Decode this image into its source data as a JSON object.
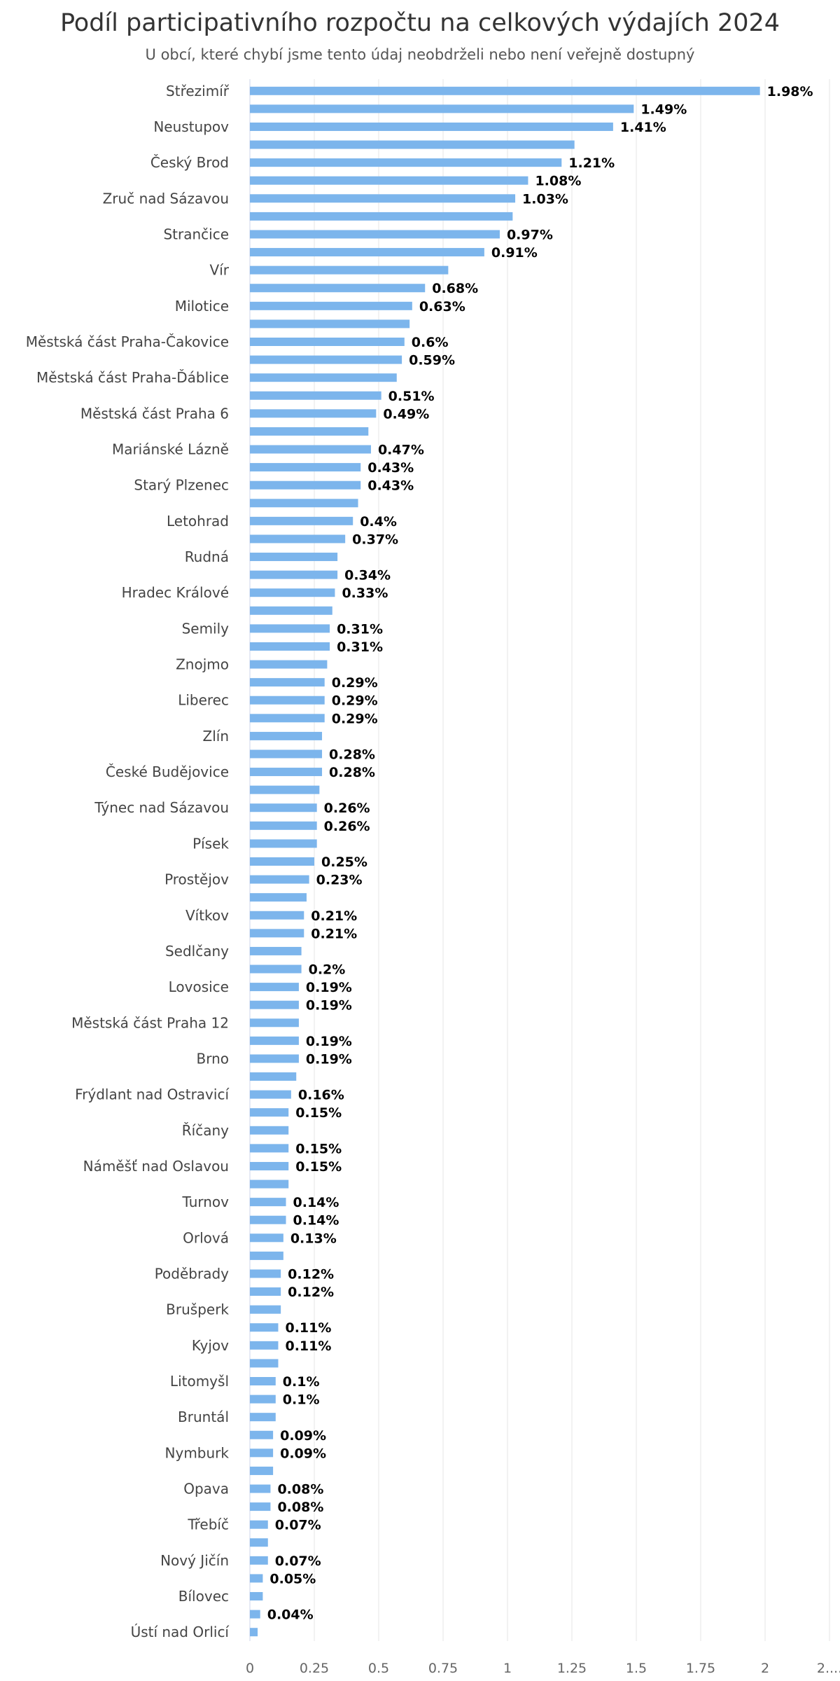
{
  "chart_data": {
    "type": "bar",
    "orientation": "horizontal",
    "title": "Podíl participativního rozpočtu na celkových výdajích 2024",
    "subtitle": "U obcí, které chybí jsme tento údaj neobdrželi nebo není veřejně dostupný",
    "xlabel": "",
    "ylabel": "",
    "xlim": [
      0,
      2.2
    ],
    "grid": true,
    "bar_color": "#7cb5ec",
    "x_ticks": [
      "0",
      "0.25",
      "0.5",
      "0.75",
      "1",
      "1.25",
      "1.5",
      "1.75",
      "2",
      "2...."
    ],
    "categories": [
      "Střezimíř",
      "",
      "Neustupov",
      "",
      "Český Brod",
      "",
      "Zruč nad Sázavou",
      "",
      "Strančice",
      "",
      "Vír",
      "",
      "Milotice",
      "",
      "Městská část Praha-Čakovice",
      "",
      "Městská část Praha-Ďáblice",
      "",
      "Městská část Praha 6",
      "",
      "Mariánské Lázně",
      "",
      "Starý Plzenec",
      "",
      "Letohrad",
      "",
      "Rudná",
      "",
      "Hradec Králové",
      "",
      "Semily",
      "",
      "Znojmo",
      "",
      "Liberec",
      "",
      "Zlín",
      "",
      "České Budějovice",
      "",
      "Týnec nad Sázavou",
      "",
      "Písek",
      "",
      "Prostějov",
      "",
      "Vítkov",
      "",
      "Sedlčany",
      "",
      "Lovosice",
      "",
      "Městská část Praha 12",
      "",
      "Brno",
      "",
      "Frýdlant nad Ostravicí",
      "",
      "Říčany",
      "",
      "Náměšť nad Oslavou",
      "",
      "Turnov",
      "",
      "Orlová",
      "",
      "Poděbrady",
      "",
      "Brušperk",
      "",
      "Kyjov",
      "",
      "Litomyšl",
      "",
      "Bruntál",
      "",
      "Nymburk",
      "",
      "Opava",
      "",
      "Třebíč",
      "",
      "Nový Jičín",
      "",
      "Bílovec",
      "",
      "Ústí nad Orlicí"
    ],
    "values": [
      1.98,
      1.49,
      1.41,
      1.26,
      1.21,
      1.08,
      1.03,
      1.02,
      0.97,
      0.91,
      0.77,
      0.68,
      0.63,
      0.62,
      0.6,
      0.59,
      0.57,
      0.51,
      0.49,
      0.46,
      0.47,
      0.43,
      0.43,
      0.42,
      0.4,
      0.37,
      0.34,
      0.34,
      0.33,
      0.32,
      0.31,
      0.31,
      0.3,
      0.29,
      0.29,
      0.29,
      0.28,
      0.28,
      0.28,
      0.27,
      0.26,
      0.26,
      0.26,
      0.25,
      0.23,
      0.22,
      0.21,
      0.21,
      0.2,
      0.2,
      0.19,
      0.19,
      0.19,
      0.19,
      0.19,
      0.18,
      0.16,
      0.15,
      0.15,
      0.15,
      0.15,
      0.15,
      0.14,
      0.14,
      0.13,
      0.13,
      0.12,
      0.12,
      0.12,
      0.11,
      0.11,
      0.11,
      0.1,
      0.1,
      0.1,
      0.09,
      0.09,
      0.09,
      0.08,
      0.08,
      0.07,
      0.07,
      0.07,
      0.05,
      0.05,
      0.04,
      0.03
    ],
    "data_labels": [
      "1.98%",
      "1.49%",
      "1.41%",
      "",
      "1.21%",
      "1.08%",
      "1.03%",
      "",
      "0.97%",
      "0.91%",
      "",
      "0.68%",
      "0.63%",
      "",
      "0.6%",
      "0.59%",
      "",
      "0.51%",
      "0.49%",
      "",
      "0.47%",
      "0.43%",
      "0.43%",
      "",
      "0.4%",
      "0.37%",
      "",
      "0.34%",
      "0.33%",
      "",
      "0.31%",
      "0.31%",
      "",
      "0.29%",
      "0.29%",
      "0.29%",
      "",
      "0.28%",
      "0.28%",
      "",
      "0.26%",
      "0.26%",
      "",
      "0.25%",
      "0.23%",
      "",
      "0.21%",
      "0.21%",
      "",
      "0.2%",
      "0.19%",
      "0.19%",
      "",
      "0.19%",
      "0.19%",
      "",
      "0.16%",
      "0.15%",
      "",
      "0.15%",
      "0.15%",
      "",
      "0.14%",
      "0.14%",
      "0.13%",
      "",
      "0.12%",
      "0.12%",
      "",
      "0.11%",
      "0.11%",
      "",
      "0.1%",
      "0.1%",
      "",
      "0.09%",
      "0.09%",
      "",
      "0.08%",
      "0.08%",
      "0.07%",
      "",
      "0.07%",
      "0.05%",
      "",
      "0.04%",
      ""
    ]
  }
}
